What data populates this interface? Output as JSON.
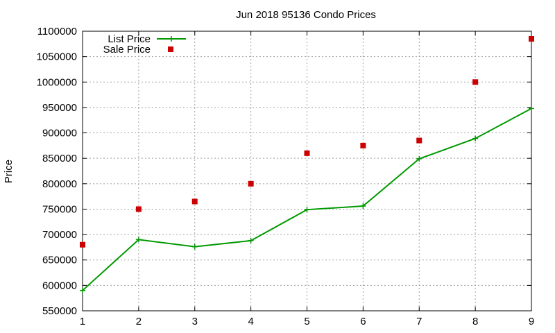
{
  "chart_data": {
    "type": "line",
    "title": "Jun 2018 95136 Condo Prices",
    "xlabel": "",
    "ylabel": "Price",
    "x": [
      1,
      2,
      3,
      4,
      5,
      6,
      7,
      8,
      9
    ],
    "xlim": [
      1,
      9
    ],
    "ylim": [
      550000,
      1100000
    ],
    "xticks": [
      "1",
      "2",
      "3",
      "4",
      "5",
      "6",
      "7",
      "8",
      "9"
    ],
    "yticks": [
      "550000",
      "600000",
      "650000",
      "700000",
      "750000",
      "800000",
      "850000",
      "900000",
      "950000",
      "1000000",
      "1050000",
      "1100000"
    ],
    "grid": true,
    "legend_position": "top-left",
    "series": [
      {
        "name": "List Price",
        "style": "line-with-plus-markers",
        "color": "#009900",
        "values": [
          590000,
          690000,
          676000,
          688000,
          749000,
          756000,
          849000,
          889000,
          948000
        ]
      },
      {
        "name": "Sale Price",
        "style": "square-points",
        "color": "#cc0000",
        "values": [
          680000,
          750000,
          765000,
          800000,
          860000,
          875000,
          885000,
          1000000,
          1085000
        ]
      }
    ]
  }
}
